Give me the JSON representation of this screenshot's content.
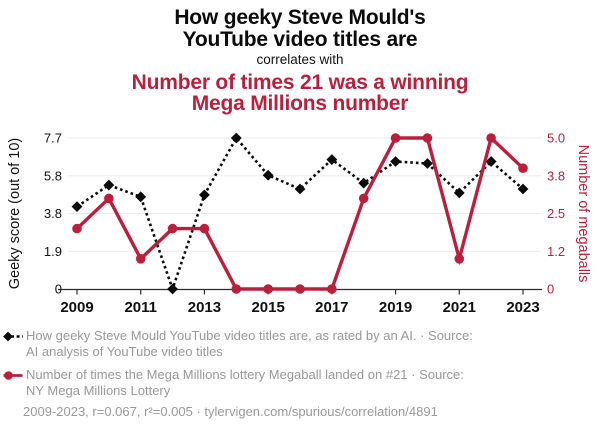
{
  "header": {
    "title_line1": "How geeky Steve Mould's",
    "title_line2": "YouTube video titles are",
    "connector": "correlates with",
    "subtitle_line1": "Number of times 21 was a winning",
    "subtitle_line2": "Mega Millions number"
  },
  "colors": {
    "accent_red": "#bb1f3c",
    "series_black": "#0b0b0b",
    "grid": "#eaeaea",
    "axis": "#2a2a2a",
    "footer_text": "#999999"
  },
  "chart_data": {
    "type": "line",
    "x": [
      2009,
      2010,
      2011,
      2012,
      2013,
      2014,
      2015,
      2016,
      2017,
      2018,
      2019,
      2020,
      2021,
      2022,
      2023
    ],
    "series": [
      {
        "name": "How geeky Steve Mould YouTube video titles are, as rated by an AI.",
        "axis": "left",
        "style": "dashed",
        "marker": "diamond",
        "color": "#0b0b0b",
        "values": [
          4.2,
          5.3,
          4.7,
          0,
          4.8,
          7.7,
          5.8,
          5.1,
          6.6,
          5.4,
          6.5,
          6.4,
          4.9,
          6.5,
          5.1
        ]
      },
      {
        "name": "Number of times the Mega Millions lottery Megaball landed on #21",
        "axis": "right",
        "style": "solid",
        "marker": "circle",
        "color": "#bb1f3c",
        "values": [
          2,
          3,
          1,
          2,
          2,
          0,
          0,
          0,
          0,
          3,
          5,
          5,
          1,
          5,
          4
        ]
      }
    ],
    "left_axis": {
      "label": "Geeky score (out of 10)",
      "tick_labels": [
        "0",
        "1.9",
        "3.8",
        "5.8",
        "7.7"
      ],
      "min": 0,
      "max": 7.7
    },
    "right_axis": {
      "label": "Number of megaballs",
      "tick_labels": [
        "0",
        "1.2",
        "2.5",
        "3.8",
        "5.0"
      ],
      "min": 0,
      "max": 5.0
    },
    "x_tick_labels": [
      "2009",
      "2011",
      "2013",
      "2015",
      "2017",
      "2019",
      "2021",
      "2023"
    ],
    "grid": true,
    "legend_position": "bottom"
  },
  "footer": {
    "legend": [
      {
        "lines": [
          "How geeky Steve Mould YouTube video titles are, as rated by an AI. · Source:",
          "AI analysis of YouTube video titles"
        ]
      },
      {
        "lines": [
          "Number of times the Mega Millions lottery Megaball landed on #21 · Source:",
          "NY Mega Millions Lottery"
        ]
      }
    ],
    "stats": "2009-2023, r=0.067, r²=0.005 · tylervigen.com/spurious/correlation/4891"
  }
}
